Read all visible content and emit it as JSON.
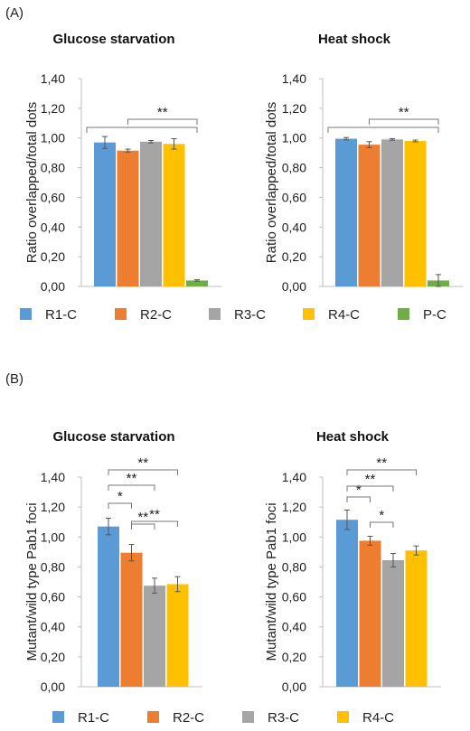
{
  "panels": [
    {
      "label": "(A)",
      "legend": [
        "R1-C",
        "R2-C",
        "R3-C",
        "R4-C",
        "P-C"
      ]
    },
    {
      "label": "(B)",
      "legend": [
        "R1-C",
        "R2-C",
        "R3-C",
        "R4-C"
      ]
    }
  ],
  "colors": {
    "R1-C": "#5b9bd5",
    "R2-C": "#ed7d31",
    "R3-C": "#a5a5a5",
    "R4-C": "#ffc000",
    "P-C": "#70ad47"
  },
  "chart_data": [
    {
      "type": "bar",
      "title": "Glucose starvation",
      "ylabel": "Ratio overlapped/total dots",
      "ylim": [
        0,
        1.4
      ],
      "yticks": [
        "0,00",
        "0,20",
        "0,40",
        "0,60",
        "0,80",
        "1,00",
        "1,20",
        "1,40"
      ],
      "categories": [
        "R1-C",
        "R2-C",
        "R3-C",
        "R4-C",
        "P-C"
      ],
      "values": [
        0.97,
        0.915,
        0.975,
        0.96,
        0.04
      ],
      "errors": [
        0.04,
        0.01,
        0.008,
        0.035,
        0.005
      ],
      "significance": [
        {
          "from": 0,
          "to": 4,
          "label": ""
        },
        {
          "from": 1,
          "to": 4,
          "label": "**"
        }
      ]
    },
    {
      "type": "bar",
      "title": "Heat shock",
      "ylabel": "Ratio overlapped/total dots",
      "ylim": [
        0,
        1.4
      ],
      "yticks": [
        "0,00",
        "0,20",
        "0,40",
        "0,60",
        "0,80",
        "1,00",
        "1,20",
        "1,40"
      ],
      "categories": [
        "R1-C",
        "R2-C",
        "R3-C",
        "R4-C",
        "P-C"
      ],
      "values": [
        0.995,
        0.955,
        0.99,
        0.98,
        0.04
      ],
      "errors": [
        0.008,
        0.02,
        0.005,
        0.006,
        0.04
      ],
      "significance": [
        {
          "from": 0,
          "to": 4,
          "label": ""
        },
        {
          "from": 1,
          "to": 4,
          "label": "**"
        }
      ]
    },
    {
      "type": "bar",
      "title": "Glucose starvation",
      "ylabel": "Mutant/wild type Pab1 foci",
      "ylim": [
        0,
        1.4
      ],
      "yticks": [
        "0,00",
        "0,20",
        "0,40",
        "0,60",
        "0,80",
        "1,00",
        "1,20",
        "1,40"
      ],
      "categories": [
        "R1-C",
        "R2-C",
        "R3-C",
        "R4-C"
      ],
      "values": [
        1.07,
        0.895,
        0.675,
        0.685
      ],
      "errors": [
        0.055,
        0.055,
        0.05,
        0.05
      ],
      "significance": [
        {
          "from": 0,
          "to": 1,
          "label": "*"
        },
        {
          "from": 0,
          "to": 2,
          "label": "**"
        },
        {
          "from": 0,
          "to": 3,
          "label": "**"
        },
        {
          "from": 1,
          "to": 2,
          "label": "**"
        },
        {
          "from": 1,
          "to": 3,
          "label": "**"
        }
      ]
    },
    {
      "type": "bar",
      "title": "Heat shock",
      "ylabel": "Mutant/wild type Pab1 foci",
      "ylim": [
        0,
        1.4
      ],
      "yticks": [
        "0,00",
        "0,20",
        "0,40",
        "0,60",
        "0,80",
        "1,00",
        "1,20",
        "1,40"
      ],
      "categories": [
        "R1-C",
        "R2-C",
        "R3-C",
        "R4-C"
      ],
      "values": [
        1.115,
        0.975,
        0.845,
        0.91
      ],
      "errors": [
        0.065,
        0.03,
        0.045,
        0.03
      ],
      "significance": [
        {
          "from": 0,
          "to": 1,
          "label": "*"
        },
        {
          "from": 0,
          "to": 2,
          "label": "**"
        },
        {
          "from": 0,
          "to": 3,
          "label": "**"
        },
        {
          "from": 1,
          "to": 2,
          "label": "*"
        }
      ]
    }
  ]
}
